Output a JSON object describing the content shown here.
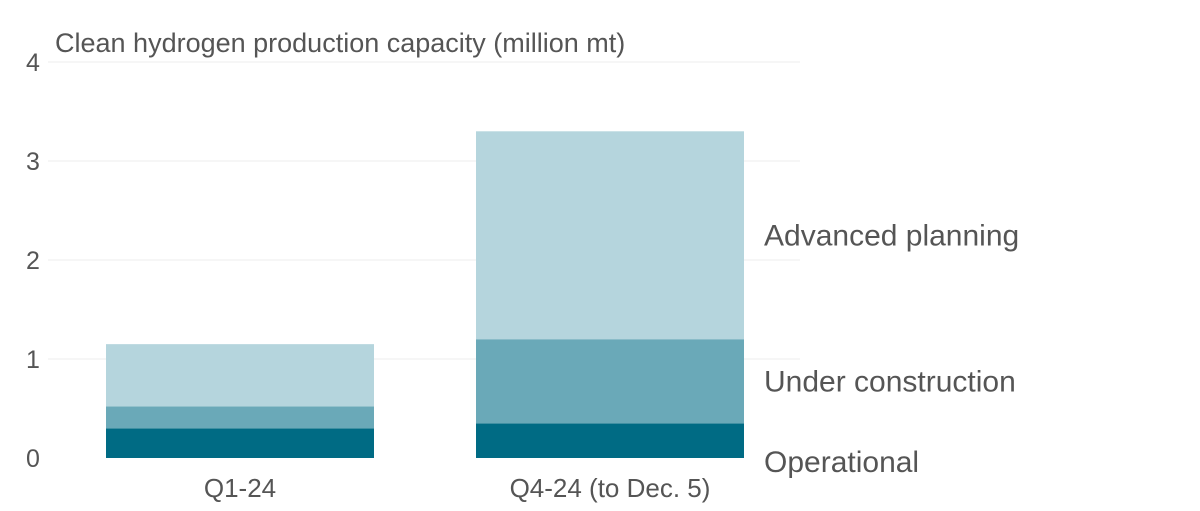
{
  "chart_data": {
    "type": "bar",
    "stacked": true,
    "title": "",
    "ylabel": "Clean hydrogen production capacity (million mt)",
    "xlabel": "",
    "ylim": [
      0,
      4
    ],
    "yticks": [
      0,
      1,
      2,
      3,
      4
    ],
    "grid": true,
    "legend_placement": "right, inline labels",
    "categories": [
      "Q1-24",
      "Q4-24 (to Dec. 5)"
    ],
    "series": [
      {
        "name": "Operational",
        "color": "#006b84",
        "values": [
          0.3,
          0.35
        ]
      },
      {
        "name": "Under construction",
        "color": "#6aa9b8",
        "values": [
          0.22,
          0.85
        ]
      },
      {
        "name": "Advanced planning",
        "color": "#b5d5dd",
        "values": [
          0.63,
          2.1
        ]
      }
    ]
  }
}
